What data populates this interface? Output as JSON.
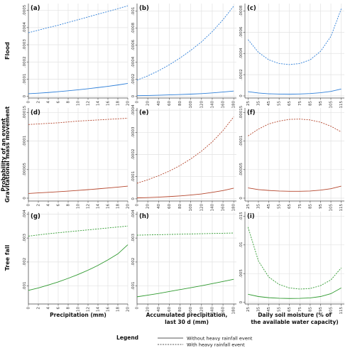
{
  "figure": {
    "y_title": "Probability of an event",
    "row_titles": [
      "Flood",
      "Gravitational mass movement",
      "Tree fall"
    ],
    "col_titles": [
      [
        "Precipitation (mm)"
      ],
      [
        "Accumulated precipitation,",
        "last 30 d (mm)"
      ],
      [
        "Daily soil moisture (% of",
        "the available water capacity)"
      ]
    ],
    "legend": {
      "title": "Legend",
      "entries": [
        {
          "label": "Without heavy rainfall event",
          "style": "solid"
        },
        {
          "label": "With heavy rainfall event",
          "style": "dashed"
        }
      ]
    },
    "colors": {
      "flood": "#2e7fd8",
      "gravitational": "#b5472e",
      "treefall": "#2f9a2f",
      "grid": "#e2e2e2",
      "axis": "#444444"
    }
  },
  "chart_data": [
    {
      "type": "line",
      "label": "(a)",
      "row": 0,
      "col": 0,
      "color": "flood",
      "xlim": [
        0,
        20
      ],
      "xticks": [
        "0",
        "2",
        "4",
        "6",
        "8",
        "10",
        "12",
        "14",
        "16",
        "18",
        "20"
      ],
      "ylim": [
        -1e-05,
        0.00054
      ],
      "yticks": [
        {
          "v": 0,
          "t": "0"
        },
        {
          "v": 0.0001,
          "t": ".0001"
        },
        {
          "v": 0.0002,
          "t": ".0002"
        },
        {
          "v": 0.0003,
          "t": ".0003"
        },
        {
          "v": 0.0004,
          "t": ".0004"
        },
        {
          "v": 0.0005,
          "t": ".0005"
        }
      ],
      "series": [
        {
          "style": "solid",
          "x": [
            0,
            2,
            4,
            6,
            8,
            10,
            12,
            14,
            16,
            18,
            20
          ],
          "y": [
            1.5e-05,
            1.8e-05,
            2.2e-05,
            2.7e-05,
            3.2e-05,
            3.8e-05,
            4.4e-05,
            5.1e-05,
            5.8e-05,
            6.6e-05,
            7.5e-05
          ]
        },
        {
          "style": "dashed",
          "x": [
            0,
            2,
            4,
            6,
            8,
            10,
            12,
            14,
            16,
            18,
            20
          ],
          "y": [
            0.00037,
            0.000385,
            0.0004,
            0.000414,
            0.00043,
            0.000446,
            0.000462,
            0.000478,
            0.000494,
            0.00051,
            0.000527
          ]
        }
      ]
    },
    {
      "type": "line",
      "label": "(b)",
      "row": 0,
      "col": 1,
      "color": "flood",
      "xlim": [
        0,
        185
      ],
      "xticks": [
        "0",
        "20",
        "40",
        "60",
        "80",
        "100",
        "120",
        "140",
        "160",
        "180"
      ],
      "ylim": [
        -2e-05,
        0.00109
      ],
      "yticks": [
        {
          "v": 0,
          "t": "0"
        },
        {
          "v": 0.0002,
          "t": ".0002"
        },
        {
          "v": 0.0004,
          "t": ".0004"
        },
        {
          "v": 0.0006,
          "t": ".0006"
        },
        {
          "v": 0.0008,
          "t": ".0008"
        },
        {
          "v": 0.001,
          "t": ".001"
        }
      ],
      "series": [
        {
          "style": "solid",
          "x": [
            0,
            20,
            40,
            60,
            80,
            100,
            120,
            140,
            160,
            180
          ],
          "y": [
            8e-06,
            1e-05,
            1.3e-05,
            1.7e-05,
            2.1e-05,
            2.6e-05,
            3.2e-05,
            4e-05,
            5e-05,
            6.2e-05
          ]
        },
        {
          "style": "dashed",
          "x": [
            0,
            20,
            40,
            60,
            80,
            100,
            120,
            140,
            160,
            180
          ],
          "y": [
            0.00019,
            0.00024,
            0.0003,
            0.00037,
            0.00045,
            0.00054,
            0.00064,
            0.00076,
            0.0009,
            0.00106
          ]
        }
      ]
    },
    {
      "type": "line",
      "label": "(c)",
      "row": 0,
      "col": 2,
      "color": "flood",
      "xlim": [
        22,
        118
      ],
      "xticks": [
        "25",
        "35",
        "45",
        "55",
        "65",
        "75",
        "85",
        "95",
        "105",
        "115"
      ],
      "ylim": [
        -2e-05,
        0.00087
      ],
      "yticks": [
        {
          "v": 0,
          "t": "0"
        },
        {
          "v": 0.0002,
          "t": ".0002"
        },
        {
          "v": 0.0004,
          "t": ".0004"
        },
        {
          "v": 0.0006,
          "t": ".0006"
        },
        {
          "v": 0.0008,
          "t": ".0008"
        }
      ],
      "series": [
        {
          "style": "solid",
          "x": [
            25,
            35,
            45,
            55,
            65,
            75,
            85,
            95,
            105,
            115
          ],
          "y": [
            4e-05,
            2.7e-05,
            2e-05,
            1.7e-05,
            1.6e-05,
            1.8e-05,
            2.2e-05,
            3e-05,
            4.2e-05,
            6.5e-05
          ]
        },
        {
          "style": "dashed",
          "x": [
            25,
            35,
            45,
            55,
            65,
            75,
            85,
            95,
            105,
            115
          ],
          "y": [
            0.00053,
            0.00041,
            0.00034,
            0.000305,
            0.000295,
            0.000305,
            0.00034,
            0.00042,
            0.00056,
            0.00082
          ]
        }
      ]
    },
    {
      "type": "line",
      "label": "(d)",
      "row": 1,
      "col": 0,
      "color": "gravitational",
      "xlim": [
        0,
        20
      ],
      "xticks": [
        "0",
        "2",
        "4",
        "6",
        "8",
        "10",
        "12",
        "14",
        "16",
        "18",
        "20"
      ],
      "ylim": [
        -5e-06,
        0.000158
      ],
      "yticks": [
        {
          "v": 0,
          "t": "0"
        },
        {
          "v": 5e-05,
          "t": ".00005"
        },
        {
          "v": 0.0001,
          "t": ".0001"
        },
        {
          "v": 0.00015,
          "t": ".00015"
        }
      ],
      "series": [
        {
          "style": "solid",
          "x": [
            0,
            2,
            4,
            6,
            8,
            10,
            12,
            14,
            16,
            18,
            20
          ],
          "y": [
            8.2e-06,
            9.2e-06,
            1.02e-05,
            1.13e-05,
            1.24e-05,
            1.36e-05,
            1.49e-05,
            1.63e-05,
            1.78e-05,
            1.94e-05,
            2.1e-05
          ]
        },
        {
          "style": "dashed",
          "x": [
            0,
            2,
            4,
            6,
            8,
            10,
            12,
            14,
            16,
            18,
            20
          ],
          "y": [
            0.000129,
            0.00013,
            0.000131,
            0.000132,
            0.0001335,
            0.000135,
            0.000136,
            0.000137,
            0.000138,
            0.000139,
            0.00014
          ]
        }
      ]
    },
    {
      "type": "line",
      "label": "(e)",
      "row": 1,
      "col": 1,
      "color": "gravitational",
      "xlim": [
        0,
        185
      ],
      "xticks": [
        "0",
        "20",
        "40",
        "60",
        "80",
        "100",
        "120",
        "140",
        "160",
        "180"
      ],
      "ylim": [
        -1e-05,
        0.00041
      ],
      "yticks": [
        {
          "v": 0,
          "t": "0"
        },
        {
          "v": 0.0001,
          "t": ".0001"
        },
        {
          "v": 0.0002,
          "t": ".0002"
        },
        {
          "v": 0.0003,
          "t": ".0003"
        },
        {
          "v": 0.0004,
          "t": ".0004"
        }
      ],
      "series": [
        {
          "style": "solid",
          "x": [
            0,
            20,
            40,
            60,
            80,
            100,
            120,
            140,
            160,
            180
          ],
          "y": [
            4e-06,
            5.5e-06,
            7.5e-06,
            1e-05,
            1.3e-05,
            1.7e-05,
            2.2e-05,
            2.9e-05,
            3.7e-05,
            4.8e-05
          ]
        },
        {
          "style": "dashed",
          "x": [
            0,
            20,
            40,
            60,
            80,
            100,
            120,
            140,
            160,
            180
          ],
          "y": [
            7e-05,
            8.6e-05,
            0.000104,
            0.000125,
            0.00015,
            0.00018,
            0.000215,
            0.000257,
            0.000308,
            0.00037
          ]
        }
      ]
    },
    {
      "type": "line",
      "label": "(f)",
      "row": 1,
      "col": 2,
      "color": "gravitational",
      "xlim": [
        22,
        118
      ],
      "xticks": [
        "25",
        "35",
        "45",
        "55",
        "65",
        "75",
        "85",
        "95",
        "105",
        "115"
      ],
      "ylim": [
        -5e-06,
        0.000158
      ],
      "yticks": [
        {
          "v": 0,
          "t": "0"
        },
        {
          "v": 5e-05,
          "t": ".00005"
        },
        {
          "v": 0.0001,
          "t": ".0001"
        },
        {
          "v": 0.00015,
          "t": ".00015"
        }
      ],
      "series": [
        {
          "style": "solid",
          "x": [
            25,
            35,
            45,
            55,
            65,
            75,
            85,
            95,
            105,
            115
          ],
          "y": [
            1.8e-05,
            1.5e-05,
            1.35e-05,
            1.25e-05,
            1.2e-05,
            1.2e-05,
            1.25e-05,
            1.4e-05,
            1.65e-05,
            2.1e-05
          ]
        },
        {
          "style": "dashed",
          "x": [
            25,
            35,
            45,
            55,
            65,
            75,
            85,
            95,
            105,
            115
          ],
          "y": [
            0.000109,
            0.000121,
            0.00013,
            0.000135,
            0.000138,
            0.0001385,
            0.000137,
            0.000133,
            0.000126,
            0.000116
          ]
        }
      ]
    },
    {
      "type": "line",
      "label": "(g)",
      "row": 2,
      "col": 0,
      "color": "treefall",
      "xlim": [
        0,
        20
      ],
      "xticks": [
        "0",
        "2",
        "4",
        "6",
        "8",
        "10",
        "12",
        "14",
        "16",
        "18",
        "20"
      ],
      "ylim": [
        0.00025,
        0.0041
      ],
      "yticks": [
        {
          "v": 0.001,
          "t": ".001"
        },
        {
          "v": 0.002,
          "t": ".002"
        },
        {
          "v": 0.003,
          "t": ".003"
        },
        {
          "v": 0.004,
          "t": ".004"
        }
      ],
      "series": [
        {
          "style": "solid",
          "x": [
            0,
            2,
            4,
            6,
            8,
            10,
            12,
            14,
            16,
            18,
            20
          ],
          "y": [
            0.00082,
            0.00092,
            0.00104,
            0.00117,
            0.00132,
            0.00148,
            0.00166,
            0.00186,
            0.00209,
            0.00234,
            0.00272
          ]
        },
        {
          "style": "dashed",
          "x": [
            0,
            2,
            4,
            6,
            8,
            10,
            12,
            14,
            16,
            18,
            20
          ],
          "y": [
            0.00308,
            0.00313,
            0.00318,
            0.00322,
            0.00326,
            0.0033,
            0.00334,
            0.00338,
            0.00342,
            0.00346,
            0.0035
          ]
        }
      ]
    },
    {
      "type": "line",
      "label": "(h)",
      "row": 2,
      "col": 1,
      "color": "treefall",
      "xlim": [
        0,
        185
      ],
      "xticks": [
        "0",
        "20",
        "40",
        "60",
        "80",
        "100",
        "120",
        "140",
        "160",
        "180"
      ],
      "ylim": [
        0.00025,
        0.0041
      ],
      "yticks": [
        {
          "v": 0.001,
          "t": ".001"
        },
        {
          "v": 0.002,
          "t": ".002"
        },
        {
          "v": 0.003,
          "t": ".003"
        },
        {
          "v": 0.004,
          "t": ".004"
        }
      ],
      "series": [
        {
          "style": "solid",
          "x": [
            0,
            20,
            40,
            60,
            80,
            100,
            120,
            140,
            160,
            180
          ],
          "y": [
            0.00055,
            0.00062,
            0.00069,
            0.00077,
            0.00085,
            0.00093,
            0.00101,
            0.0011,
            0.00119,
            0.00128
          ]
        },
        {
          "style": "dashed",
          "x": [
            0,
            20,
            40,
            60,
            80,
            100,
            120,
            140,
            160,
            180
          ],
          "y": [
            0.00312,
            0.00313,
            0.00314,
            0.00315,
            0.00316,
            0.00317,
            0.00318,
            0.00319,
            0.0032,
            0.00321
          ]
        }
      ]
    },
    {
      "type": "line",
      "label": "(i)",
      "row": 2,
      "col": 2,
      "color": "treefall",
      "xlim": [
        22,
        118
      ],
      "xticks": [
        "25",
        "35",
        "45",
        "55",
        "65",
        "75",
        "85",
        "95",
        "105",
        "115"
      ],
      "ylim": [
        -0.0003,
        0.0158
      ],
      "yticks": [
        {
          "v": 0,
          "t": "0"
        },
        {
          "v": 0.005,
          "t": ".005"
        },
        {
          "v": 0.01,
          "t": ".01"
        },
        {
          "v": 0.015,
          "t": ".015"
        }
      ],
      "series": [
        {
          "style": "solid",
          "x": [
            25,
            35,
            45,
            55,
            65,
            75,
            85,
            95,
            105,
            115
          ],
          "y": [
            0.0014,
            0.001,
            0.0008,
            0.0007,
            0.00066,
            0.00068,
            0.00076,
            0.001,
            0.0015,
            0.0025
          ]
        },
        {
          "style": "dashed",
          "x": [
            25,
            35,
            45,
            55,
            65,
            75,
            85,
            95,
            105,
            115
          ],
          "y": [
            0.0131,
            0.0072,
            0.0044,
            0.0031,
            0.0025,
            0.0023,
            0.0024,
            0.0029,
            0.0039,
            0.006
          ]
        }
      ]
    }
  ]
}
